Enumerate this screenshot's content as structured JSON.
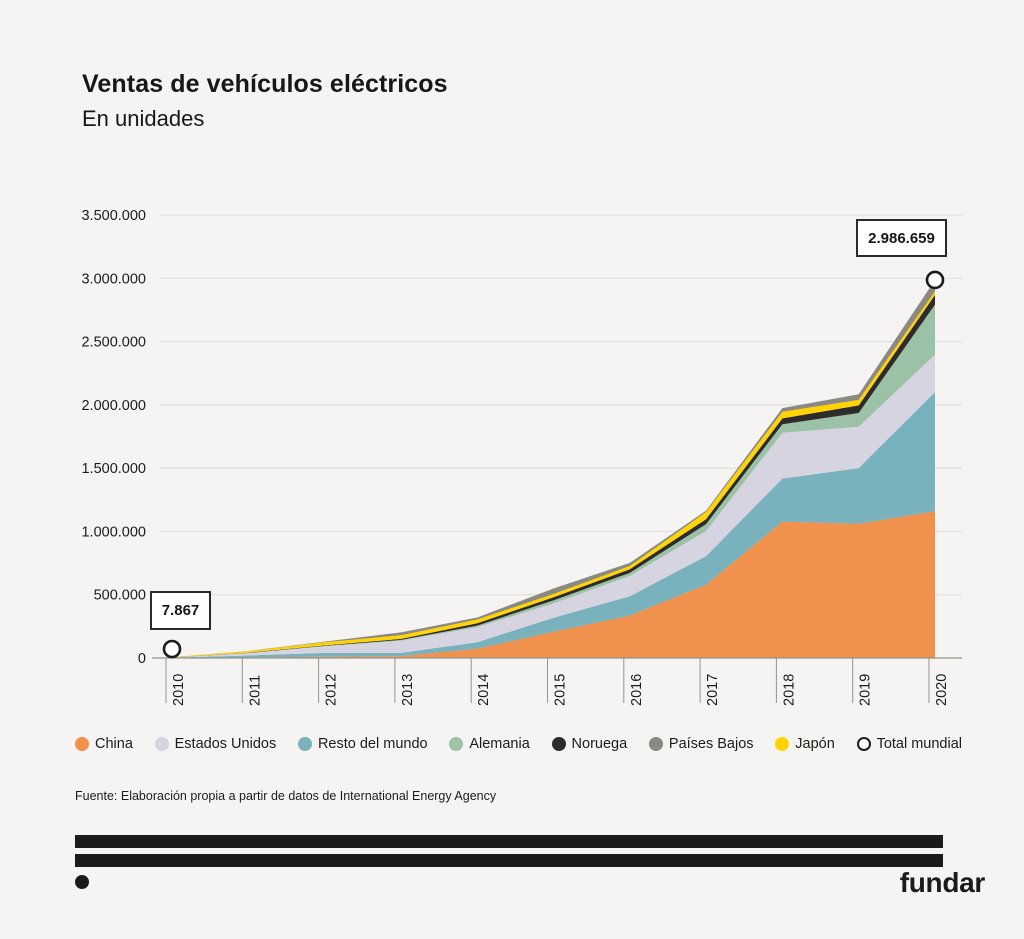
{
  "header": {
    "title": "Ventas de vehículos eléctricos",
    "subtitle": "En unidades"
  },
  "chart_data": {
    "type": "area",
    "stacked": true,
    "title": "Ventas de vehículos eléctricos",
    "subtitle": "En unidades",
    "x": [
      2010,
      2011,
      2012,
      2013,
      2014,
      2015,
      2016,
      2017,
      2018,
      2019,
      2020
    ],
    "series": [
      {
        "name": "China",
        "color": "#f0914d",
        "values": [
          1409,
          5074,
          9923,
          15336,
          73174,
          207382,
          336000,
          579000,
          1078000,
          1060000,
          1160000
        ]
      },
      {
        "name": "Resto del mundo",
        "color": "#79b1bd",
        "values": [
          1971,
          15000,
          30000,
          25000,
          52000,
          110000,
          152000,
          226000,
          340000,
          440000,
          941859
        ]
      },
      {
        "name": "Estados Unidos",
        "color": "#d6d4e1",
        "values": [
          1191,
          17730,
          52835,
          96602,
          117773,
          114023,
          159620,
          198350,
          361315,
          326644,
          295000
        ]
      },
      {
        "name": "Alemania",
        "color": "#9bc1a6",
        "values": [
          288,
          1858,
          2956,
          6380,
          12945,
          23464,
          24611,
          54560,
          67504,
          108629,
          395000
        ]
      },
      {
        "name": "Noruega",
        "color": "#2e2c2a",
        "values": [
          392,
          2058,
          4183,
          7882,
          18090,
          25779,
          29513,
          39458,
          46143,
          60316,
          76800
        ]
      },
      {
        "name": "Japón",
        "color": "#ffd400",
        "values": [
          2492,
          12607,
          24440,
          28716,
          30565,
          24652,
          24851,
          56303,
          52013,
          43929,
          29000
        ]
      },
      {
        "name": "Países Bajos",
        "color": "#8b8982",
        "values": [
          124,
          861,
          5296,
          22495,
          15290,
          43441,
          24484,
          11067,
          29160,
          45011,
          89000
        ]
      }
    ],
    "total": {
      "name": "Total mundial",
      "values": [
        7867,
        55188,
        129633,
        202411,
        319837,
        548741,
        751079,
        1164738,
        1974135,
        2084529,
        2986659
      ],
      "marker_indices": [
        0,
        10
      ],
      "marker_fill": "#ffffff",
      "marker_stroke": "#1c1c1c"
    },
    "annotations": [
      {
        "label": "7.867",
        "year": 2010
      },
      {
        "label": "2.986.659",
        "year": 2020
      }
    ],
    "ylim": [
      0,
      3500000
    ],
    "yticks": [
      {
        "value": 0,
        "label": "0"
      },
      {
        "value": 500000,
        "label": "500.000"
      },
      {
        "value": 1000000,
        "label": "1.000.000"
      },
      {
        "value": 1500000,
        "label": "1.500.000"
      },
      {
        "value": 2000000,
        "label": "2.000.000"
      },
      {
        "value": 2500000,
        "label": "2.500.000"
      },
      {
        "value": 3000000,
        "label": "3.000.000"
      },
      {
        "value": 3500000,
        "label": "3.500.000"
      }
    ],
    "grid": true,
    "legend_position": "bottom",
    "grid_color": "#dcdbd7",
    "axis_color": "#95938c",
    "text_color": "#1c1c1c"
  },
  "legend": {
    "items": [
      {
        "label": "China",
        "color": "#f0914d"
      },
      {
        "label": "Estados Unidos",
        "color": "#d6d4e1"
      },
      {
        "label": "Resto del mundo",
        "color": "#79b1bd"
      },
      {
        "label": "Alemania",
        "color": "#9bc1a6"
      },
      {
        "label": "Noruega",
        "color": "#2e2c2a"
      },
      {
        "label": "Países Bajos",
        "color": "#8b8982"
      },
      {
        "label": "Japón",
        "color": "#ffd400"
      },
      {
        "label": "Total mundial",
        "color": "#ffffff",
        "outline": "#1c1c1c"
      }
    ]
  },
  "source": "Fuente: Elaboración propia a partir de datos de International Energy Agency",
  "footer": {
    "brand": "fundar",
    "bar_color": "#1c1b19"
  }
}
